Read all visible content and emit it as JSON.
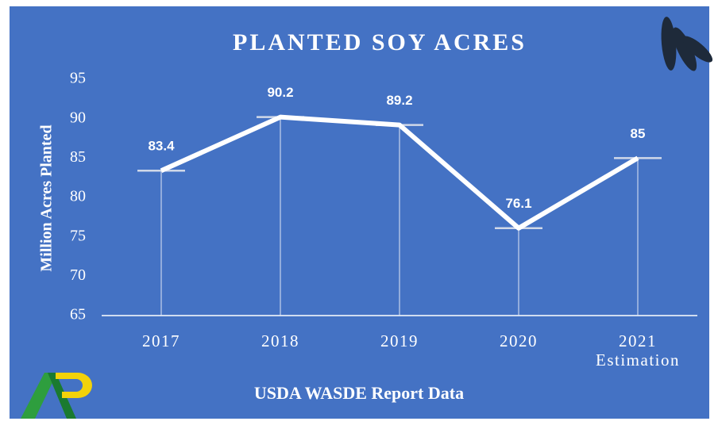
{
  "chart_data": {
    "type": "line",
    "title": "PLANTED SOY ACRES",
    "y_label": "Million Acres Planted",
    "source": "USDA WASDE Report Data",
    "categories": [
      "2017",
      "2018",
      "2019",
      "2020",
      "2021\nEstimation"
    ],
    "values": [
      83.4,
      90.2,
      89.2,
      76.1,
      85
    ],
    "color": "#ffffff",
    "ylim": [
      65,
      95
    ],
    "yticks": [
      65,
      70,
      75,
      80,
      85,
      90,
      95
    ],
    "grid": false
  }
}
